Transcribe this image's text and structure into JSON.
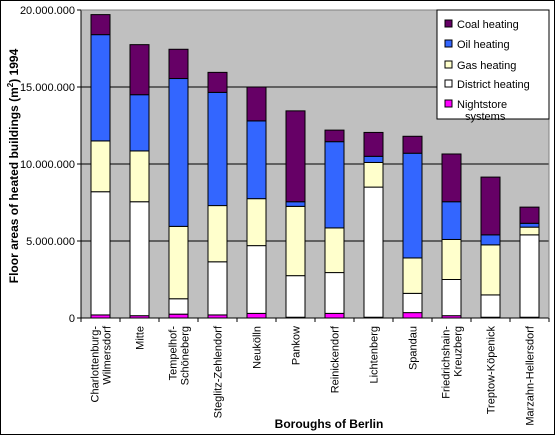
{
  "chart_data": {
    "type": "bar",
    "stacked": true,
    "title": "",
    "xlabel": "Boroughs of Berlin",
    "ylabel_main": "Floor areas of heated buildings (m",
    "ylabel_sup": "2",
    "ylabel_tail": ") 1994",
    "ylim": [
      0,
      20000000
    ],
    "yticks": [
      {
        "value": 0,
        "label": "0"
      },
      {
        "value": 5000000,
        "label": "5.000.000"
      },
      {
        "value": 10000000,
        "label": "10.000.000"
      },
      {
        "value": 15000000,
        "label": "15.000.000"
      },
      {
        "value": 20000000,
        "label": "20.000.000"
      }
    ],
    "grid": "horizontal",
    "legend_position": "top-right",
    "plot_background": "#c0c0c0",
    "categories": [
      [
        "Charlottenburg-",
        "Wilmersdorf"
      ],
      [
        "Mitte"
      ],
      [
        "Tempelhof-",
        "Schöneberg"
      ],
      [
        "Steglitz-Zehlendorf"
      ],
      [
        "Neukölln"
      ],
      [
        "Pankow"
      ],
      [
        "Reinickendorf"
      ],
      [
        "Lichtenberg"
      ],
      [
        "Spandau"
      ],
      [
        "Friedrichshain-",
        "Kreuzberg"
      ],
      [
        "Treptow-Köpenick"
      ],
      [
        "Marzahn-Hellersdorf"
      ]
    ],
    "series": [
      {
        "name": "Nightstore systems",
        "legend_label": [
          "Nightstore",
          "systems"
        ],
        "color": "#ff00ff",
        "values": [
          200000,
          150000,
          250000,
          200000,
          300000,
          50000,
          300000,
          50000,
          350000,
          150000,
          50000,
          50000
        ]
      },
      {
        "name": "District heating",
        "legend_label": [
          "District heating"
        ],
        "color": "#ffffff",
        "values": [
          8000000,
          7400000,
          1000000,
          3450000,
          4400000,
          2700000,
          2650000,
          8450000,
          1250000,
          2350000,
          1450000,
          5350000
        ]
      },
      {
        "name": "Gas heating",
        "legend_label": [
          "Gas heating"
        ],
        "color": "#ffffcc",
        "values": [
          3300000,
          3300000,
          4700000,
          3650000,
          3050000,
          4500000,
          2900000,
          1600000,
          2300000,
          2600000,
          3250000,
          500000
        ]
      },
      {
        "name": "Oil heating",
        "legend_label": [
          "Oil heating"
        ],
        "color": "#3366ff",
        "values": [
          6900000,
          3650000,
          9600000,
          7350000,
          5050000,
          300000,
          5600000,
          400000,
          6800000,
          2450000,
          650000,
          250000
        ]
      },
      {
        "name": "Coal heating",
        "legend_label": [
          "Coal heating"
        ],
        "color": "#660066",
        "values": [
          1300000,
          3250000,
          1900000,
          1300000,
          2200000,
          5900000,
          750000,
          1550000,
          1100000,
          3100000,
          3750000,
          1050000
        ]
      }
    ],
    "legend_order": [
      "Coal heating",
      "Oil heating",
      "Gas heating",
      "District heating",
      "Nightstore systems"
    ]
  }
}
